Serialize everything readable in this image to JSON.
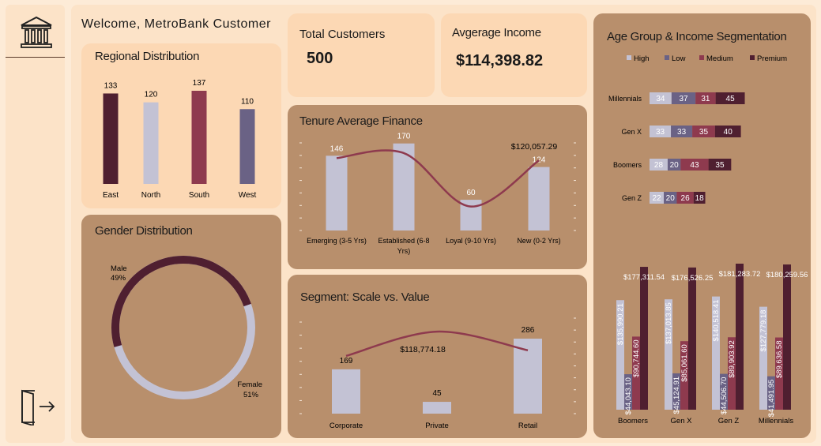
{
  "header": {
    "welcome": "Welcome, MetroBank Customer"
  },
  "sidebar": {
    "top_icon": "bank-icon",
    "bottom_icon": "logout-icon"
  },
  "kpis": {
    "total_customers_label": "Total Customers",
    "total_customers_value": "500",
    "avg_income_label": "Avgerage Income",
    "avg_income_value": "$114,398.82"
  },
  "colors": {
    "dark": "#4f1f30",
    "light": "#c3c2d4",
    "red": "#8e3a4e",
    "purple": "#6a6285",
    "card_light": "#fcd8b4",
    "card_brown": "#b88f6c"
  },
  "chart_data": [
    {
      "id": "regional",
      "type": "bar",
      "title": "Regional Distribution",
      "categories": [
        "East",
        "North",
        "South",
        "West"
      ],
      "values": [
        133,
        120,
        137,
        110
      ],
      "colors": [
        "#4f1f30",
        "#c3c2d4",
        "#8e3a4e",
        "#6a6285"
      ],
      "ylim": [
        0,
        137
      ]
    },
    {
      "id": "gender",
      "type": "pie",
      "title": "Gender Distribution",
      "labels": [
        "Male",
        "Female"
      ],
      "values": [
        49,
        51
      ],
      "value_labels": [
        "49%",
        "51%"
      ],
      "colors": [
        "#4f1f30",
        "#c3c2d4"
      ]
    },
    {
      "id": "tenure",
      "type": "bar",
      "title": "Tenure Average Finance",
      "categories": [
        "Emerging (3-5 Yrs)",
        "Established (6-8 Yrs)",
        "Loyal (9-10 Yrs)",
        "New (0-2 Yrs)"
      ],
      "category_lines": [
        [
          "Emerging (3-5 Yrs)"
        ],
        [
          "Established (6-8",
          "Yrs)"
        ],
        [
          "Loyal (9-10 Yrs)"
        ],
        [
          "New (0-2 Yrs)"
        ]
      ],
      "values": [
        146,
        170,
        60,
        124
      ],
      "line_series": {
        "values": [
          120500,
          121500,
          111000,
          120057.29
        ],
        "label": "$120,057.29",
        "ylim": [
          108000,
          123500
        ]
      },
      "ylim": [
        0,
        185
      ]
    },
    {
      "id": "segment",
      "type": "bar",
      "title": "Segment: Scale vs. Value",
      "categories": [
        "Corporate",
        "Private",
        "Retail"
      ],
      "values": [
        169,
        45,
        286
      ],
      "line_series": {
        "values": [
          108000,
          118774.18,
          110500
        ],
        "label": "$118,774.18",
        "ylim": [
          95000,
          123000
        ]
      },
      "ylim": [
        0,
        310
      ]
    },
    {
      "id": "age_stacked",
      "type": "bar",
      "title": "Age Group & Income Segmentation",
      "orientation": "horizontal-stacked",
      "categories": [
        "Millennials",
        "Gen X",
        "Boomers",
        "Gen Z"
      ],
      "series": [
        {
          "name": "High",
          "values": [
            34,
            33,
            28,
            22
          ],
          "color": "#c3c2d4"
        },
        {
          "name": "Low",
          "values": [
            37,
            33,
            20,
            20
          ],
          "color": "#6a6285"
        },
        {
          "name": "Medium",
          "values": [
            31,
            35,
            43,
            26
          ],
          "color": "#8e3a4e"
        },
        {
          "name": "Premium",
          "values": [
            45,
            40,
            35,
            18
          ],
          "color": "#4f1f30"
        }
      ],
      "legend": "top"
    },
    {
      "id": "age_income",
      "type": "bar",
      "categories": [
        "Boomers",
        "Gen X",
        "Gen Z",
        "Millennials"
      ],
      "series": [
        {
          "name": "High",
          "values": [
            135990.21,
            137013.85,
            140518.41,
            127779.18
          ],
          "labels": [
            "$135,990.21",
            "$137,013.85",
            "$140,518.41",
            "$127,779.18"
          ],
          "color": "#c3c2d4"
        },
        {
          "name": "Low",
          "values": [
            44043.1,
            45124.91,
            44506.7,
            41491.95
          ],
          "labels": [
            "$44,043.10",
            "$45,124.91",
            "$44,506.70",
            "$41,491.95"
          ],
          "color": "#6a6285"
        },
        {
          "name": "Medium",
          "values": [
            90744.6,
            85061.6,
            89903.92,
            89636.58
          ],
          "labels": [
            "$90,744.60",
            "$85,061.60",
            "$89,903.92",
            "$89,636.58"
          ],
          "color": "#8e3a4e"
        },
        {
          "name": "Premium",
          "values": [
            177311.54,
            176526.25,
            181283.72,
            180259.56
          ],
          "labels": [
            "$177,311.54",
            "$176,526.25",
            "$181,283.72",
            "$180,259.56"
          ],
          "color": "#4f1f30"
        }
      ],
      "ylim": [
        0,
        181283.72
      ]
    }
  ]
}
